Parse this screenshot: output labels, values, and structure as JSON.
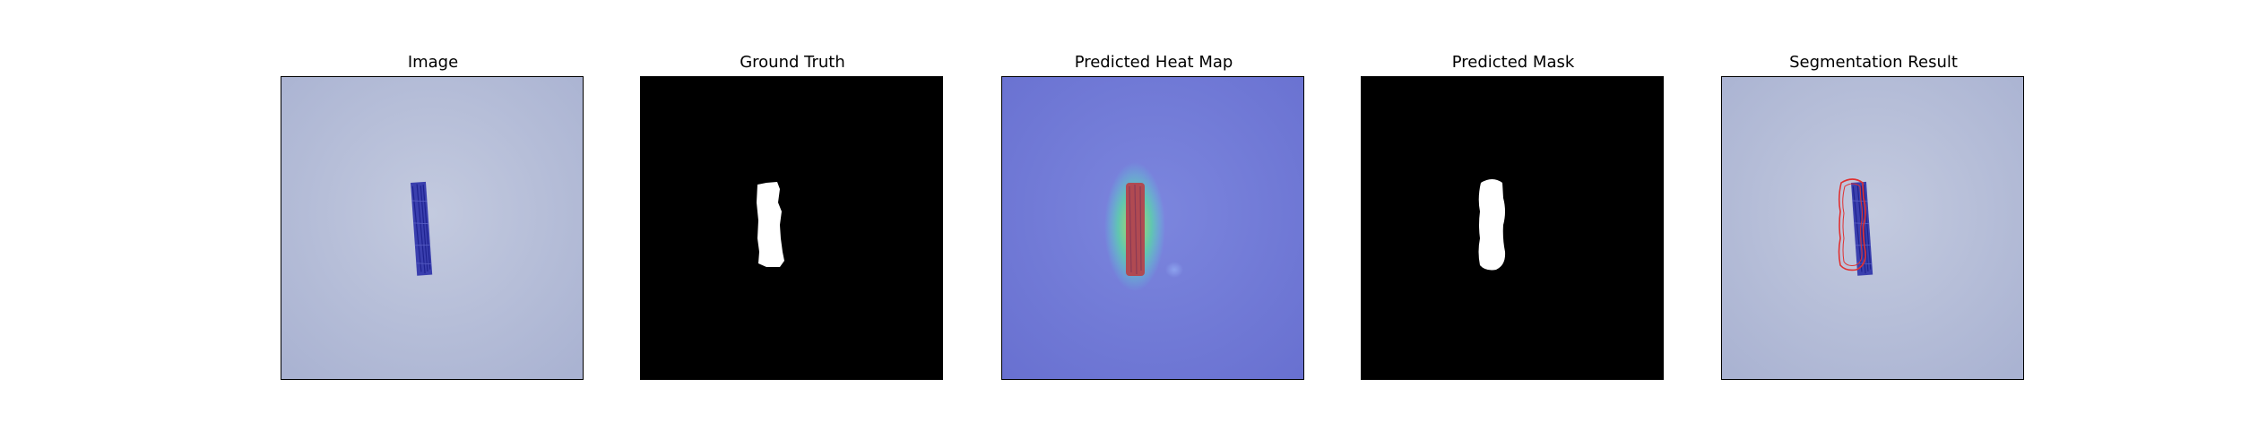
{
  "figure": {
    "panels": [
      {
        "title": "Image"
      },
      {
        "title": "Ground Truth"
      },
      {
        "title": "Predicted Heat Map"
      },
      {
        "title": "Predicted Mask"
      },
      {
        "title": "Segmentation Result"
      }
    ]
  },
  "colors": {
    "background_tint": "#b7bfd9",
    "object_blue": "#3b3fa8",
    "mask_white": "#ffffff",
    "mask_black": "#000000",
    "heat_base": "#6f78d6",
    "heat_hot": "#b23a3a",
    "contour_red": "#e03030"
  }
}
